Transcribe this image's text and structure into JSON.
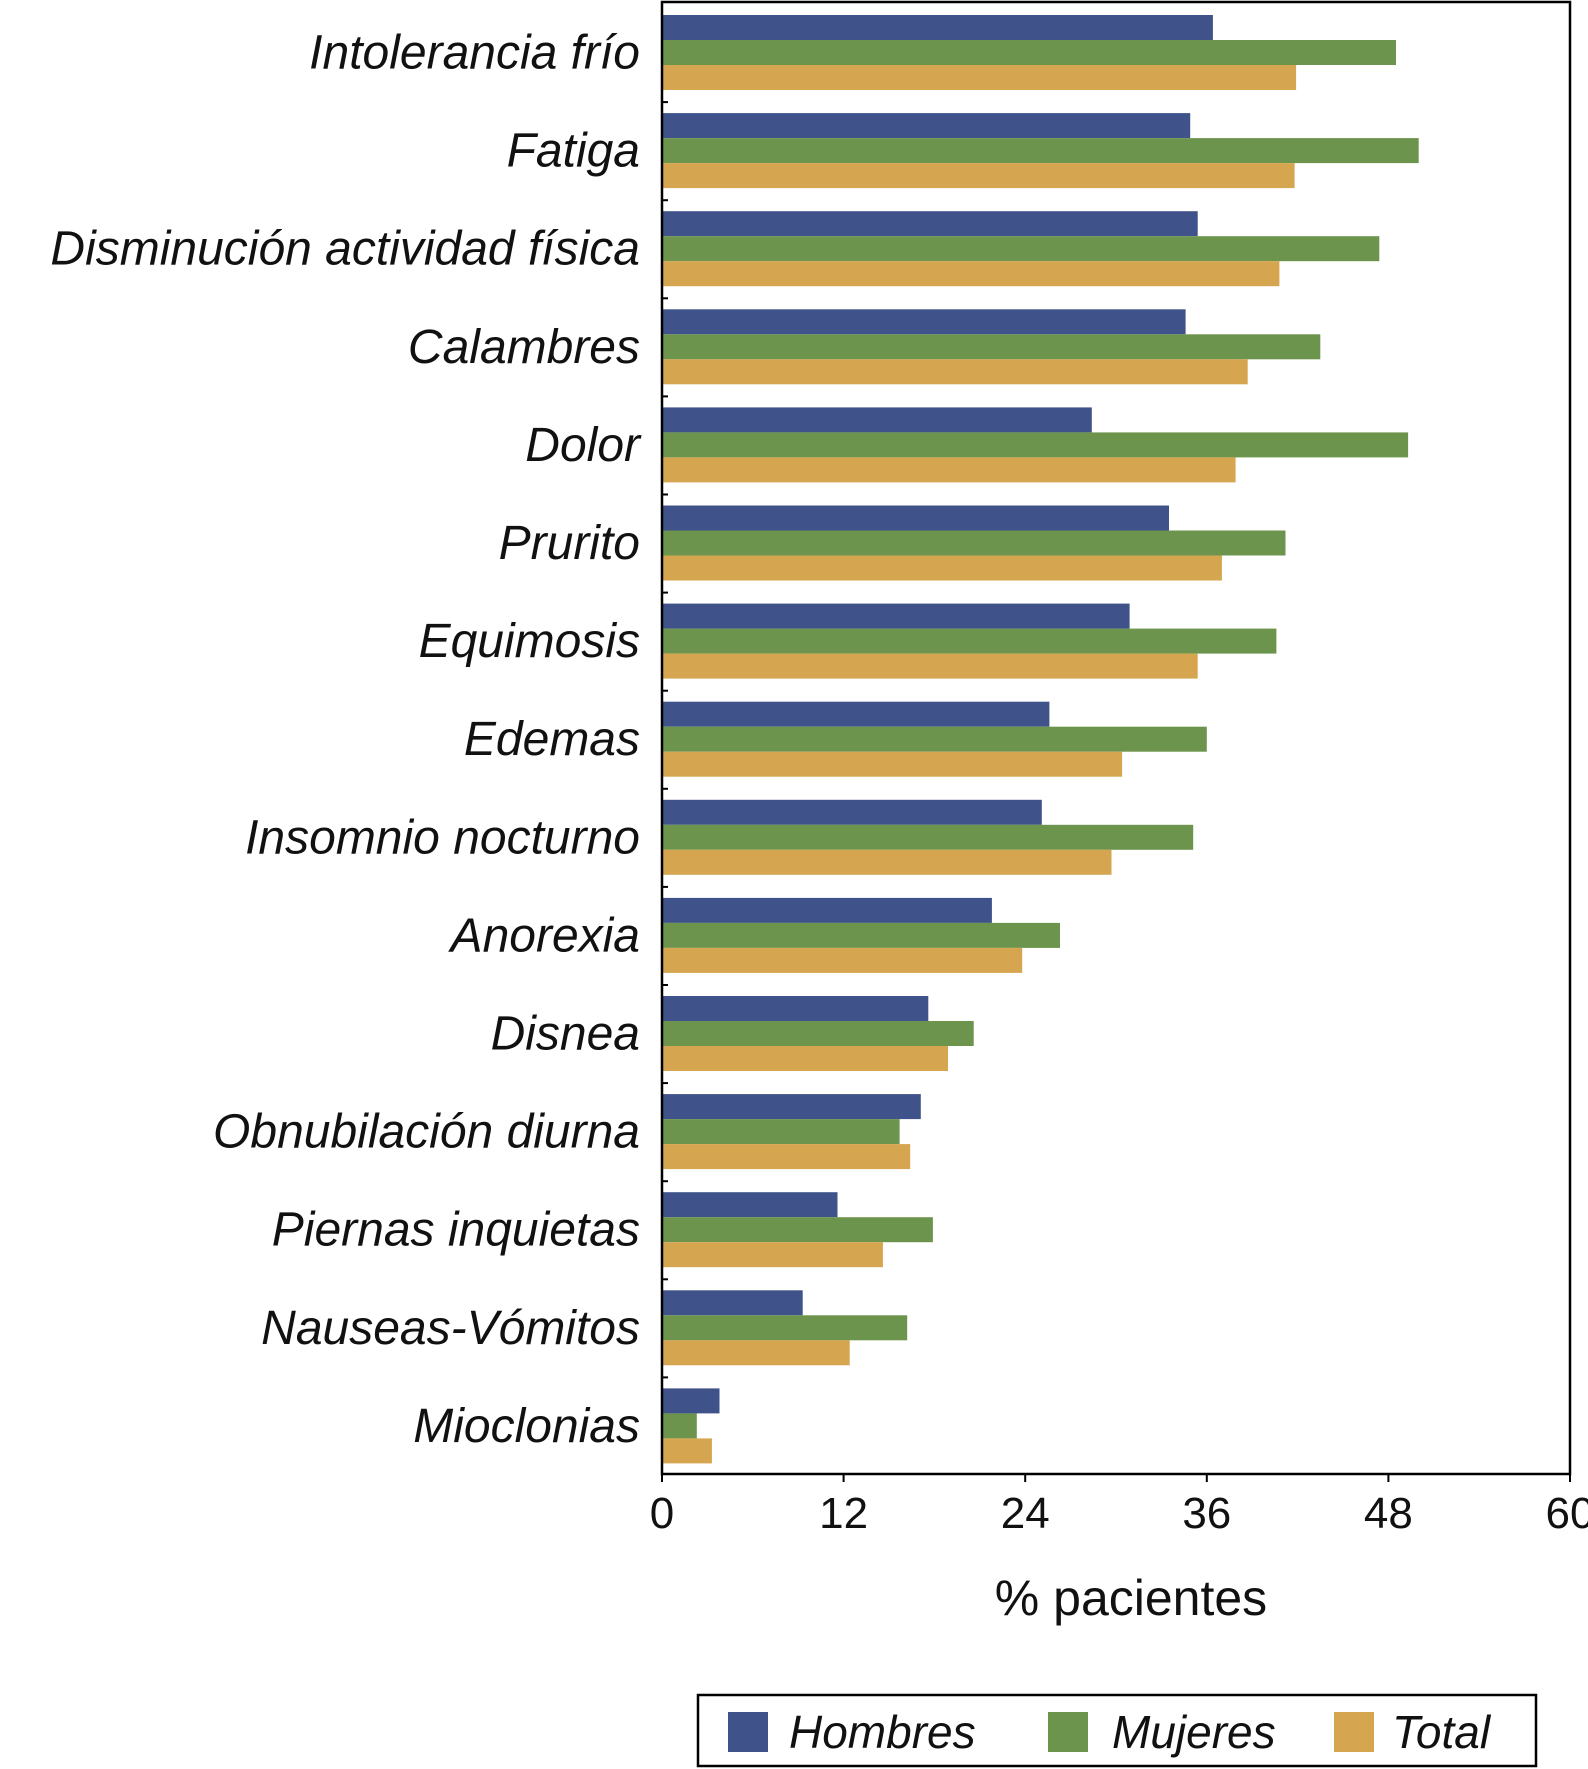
{
  "chart_data": {
    "type": "bar",
    "orientation": "horizontal",
    "categories": [
      "Intolerancia frío",
      "Fatiga",
      "Disminución actividad física",
      "Calambres",
      "Dolor",
      "Prurito",
      "Equimosis",
      "Edemas",
      "Insomnio nocturno",
      "Anorexia",
      "Disnea",
      "Obnubilación diurna",
      "Piernas inquietas",
      "Nauseas-Vómitos",
      "Mioclonias"
    ],
    "series": [
      {
        "name": "Hombres",
        "color": "#3f5289",
        "values": [
          36.4,
          34.9,
          35.4,
          34.6,
          28.4,
          33.5,
          30.9,
          25.6,
          25.1,
          21.8,
          17.6,
          17.1,
          11.6,
          9.3,
          3.8
        ]
      },
      {
        "name": "Mujeres",
        "color": "#6c944c",
        "values": [
          48.5,
          50.0,
          47.4,
          43.5,
          49.3,
          41.2,
          40.6,
          36.0,
          35.1,
          26.3,
          20.6,
          15.7,
          17.9,
          16.2,
          2.3
        ]
      },
      {
        "name": "Total",
        "color": "#d5a64f",
        "values": [
          41.9,
          41.8,
          40.8,
          38.7,
          37.9,
          37.0,
          35.4,
          30.4,
          29.7,
          23.8,
          18.9,
          16.4,
          14.6,
          12.4,
          3.3
        ]
      }
    ],
    "xlabel": "% pacientes",
    "ylabel": "",
    "xlim": [
      0,
      60
    ],
    "xticks": [
      "0",
      "12",
      "24",
      "36",
      "48",
      "60"
    ],
    "grid": false,
    "legend_placement": "bottom"
  }
}
